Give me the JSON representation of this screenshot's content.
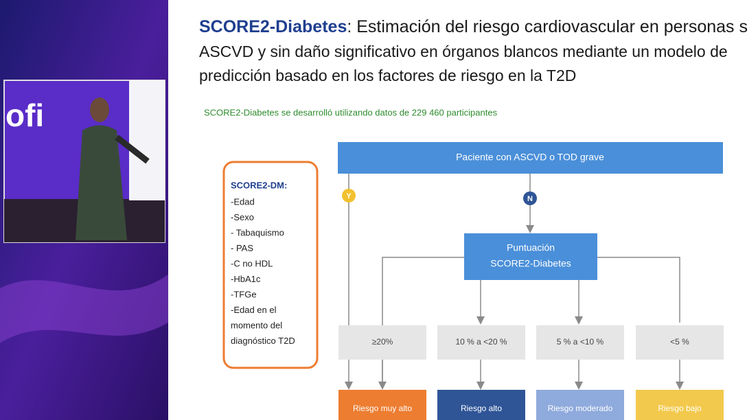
{
  "video_inset": {
    "logo": "ofi"
  },
  "slide": {
    "title": {
      "bold": "SCORE2-Diabetes",
      "lines": [
        ": Estimación del riesgo cardiovascular en personas sin",
        "ASCVD y sin daño significativo en órganos blancos mediante un modelo de",
        "predicción basado en los factores de riesgo en la T2D"
      ]
    },
    "subtitle": "SCORE2-Diabetes se desarrolló utilizando datos de 229 460 participantes",
    "factors": {
      "heading": "SCORE2-DM:",
      "items": [
        "-Edad",
        "-Sexo",
        "- Tabaquismo",
        "- PAS",
        "-C no HDL",
        "-HbA1c",
        "-TFGe",
        "-Edad en el",
        "momento del",
        "diagnóstico T2D"
      ]
    },
    "nodes": {
      "start": "Paciente con ASCVD o TOD grave",
      "yes": "Y",
      "no": "N",
      "score": [
        "Puntuación",
        "SCORE2-Diabetes"
      ]
    },
    "thresholds": [
      "≥20%",
      "10 % a <20 %",
      "5 % a <10 %",
      "<5 %"
    ],
    "outcomes": [
      "Riesgo muy alto",
      "Riesgo alto",
      "Riesgo moderado",
      "Riesgo bajo"
    ]
  }
}
